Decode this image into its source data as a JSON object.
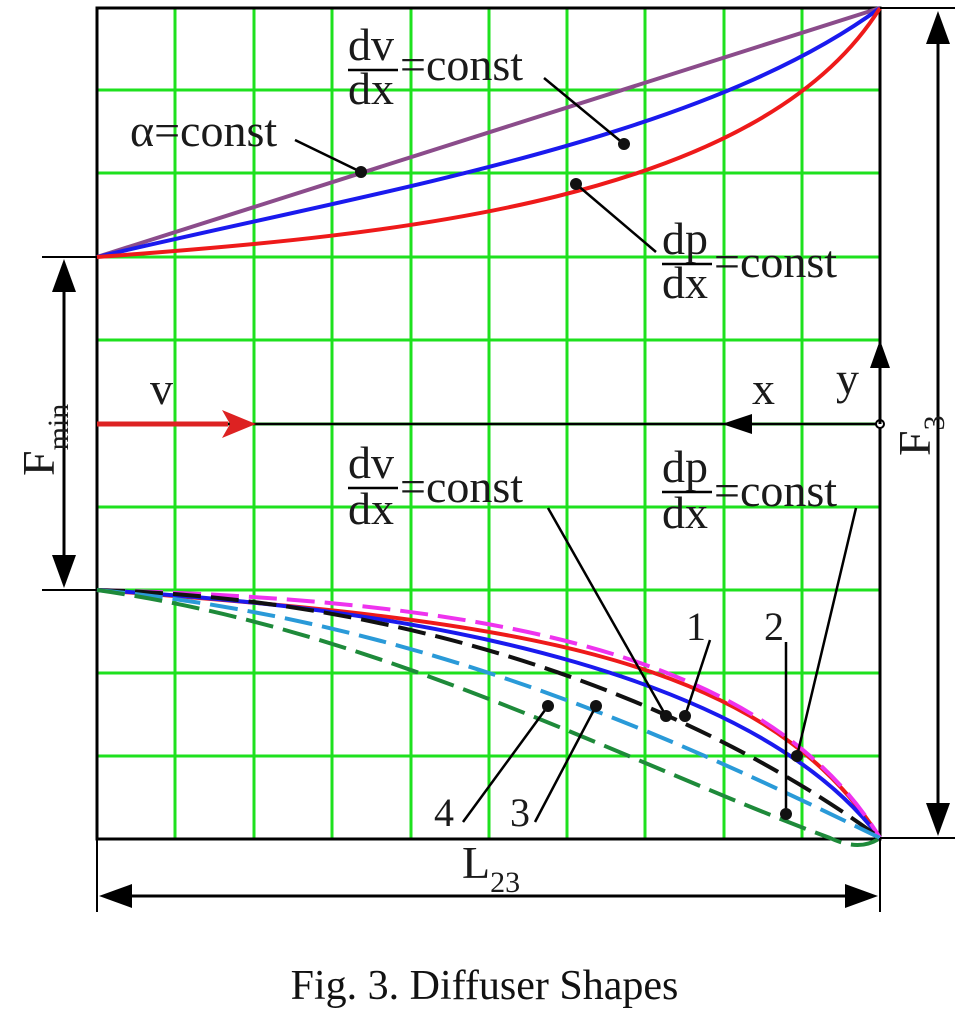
{
  "figure": {
    "caption": "Fig. 3. Diffuser Shapes",
    "colors": {
      "grid": "#1ee11e",
      "frame": "#000000",
      "alpha_const": "#8b4c8b",
      "dv_const": "#1a1aee",
      "dp_const": "#ee1a1a",
      "curve_magenta_dashed": "#ee33ee",
      "curve_black_dashed": "#111111",
      "curve_cyan_dashed": "#2a9ad8",
      "curve_green_dashed": "#1e8a3a",
      "arrow_v": "#dd2222"
    },
    "labels": {
      "alpha_eq": "=const",
      "alpha_symbol": "α",
      "dv_num": "dv",
      "dv_den": "dx",
      "dp_num": "dp",
      "dp_den": "dx",
      "const_suffix": "=const",
      "fmin_main": "F",
      "fmin_sub": "min",
      "f3_main": "F",
      "f3_sub": "3",
      "l23_main": "L",
      "l23_sub": "23",
      "v": "v",
      "x": "x",
      "y": "y",
      "n1": "1",
      "n2": "2",
      "n3": "3",
      "n4": "4"
    }
  }
}
